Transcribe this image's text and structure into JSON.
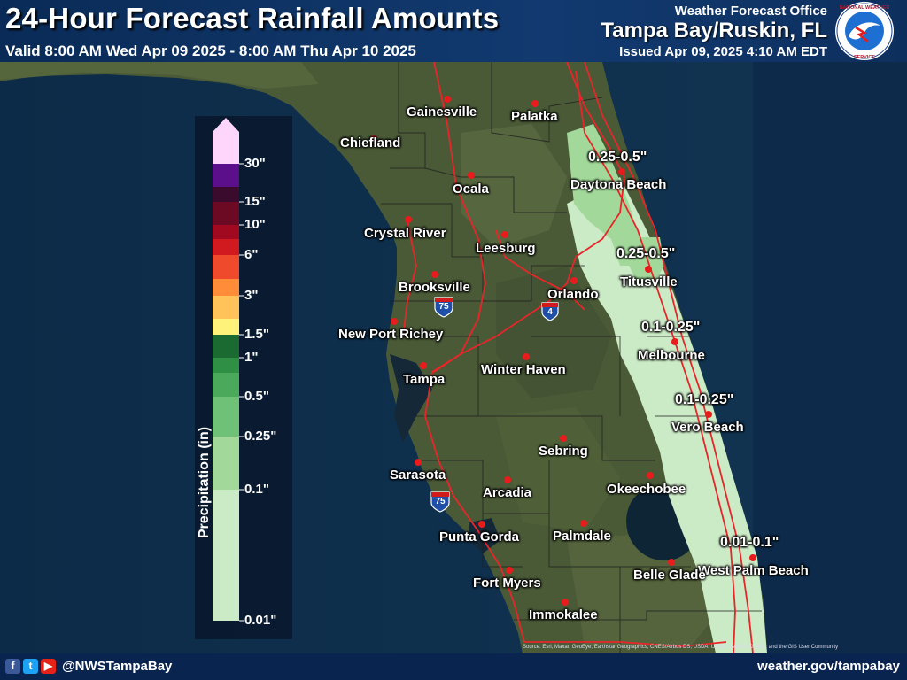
{
  "header": {
    "title": "24-Hour Forecast Rainfall Amounts",
    "valid": "Valid 8:00 AM Wed Apr 09 2025 - 8:00 AM Thu Apr 10 2025",
    "office_label": "Weather Forecast Office",
    "office_name": "Tampa Bay/Ruskin, FL",
    "issued": "Issued Apr 09, 2025 4:10 AM EDT",
    "logo_text": "NATIONAL WEATHER SERVICE"
  },
  "legend": {
    "title": "Precipitation (in)",
    "ticks": [
      "30\"",
      "15\"",
      "10\"",
      "6\"",
      "3\"",
      "1.5\"",
      "1\"",
      "0.5\"",
      "0.25\"",
      "0.1\"",
      "0.01\""
    ],
    "colors": {
      "c30": "#ffd6fb",
      "c20": "#5b0f8a",
      "c15": "#3a0b2d",
      "c12": "#6b0a22",
      "c10": "#a0091f",
      "c8": "#d11a1f",
      "c6": "#f04a2c",
      "c4": "#ff8c38",
      "c3": "#ffc35a",
      "c2": "#fff27a",
      "c1_5": "#1a6a32",
      "c1": "#2f8f44",
      "c0_75": "#4aa95a",
      "c0_5": "#6fc178",
      "c0_25": "#a2d99a",
      "c0_1": "#cbeac6"
    }
  },
  "amounts": [
    "0.25-0.5\"",
    "0.25-0.5\"",
    "0.1-0.25\"",
    "0.1-0.25\"",
    "0.01-0.1\""
  ],
  "cities": {
    "gainesville": "Gainesville",
    "palatka": "Palatka",
    "chiefland": "Chiefland",
    "ocala": "Ocala",
    "daytona": "Daytona Beach",
    "crystal_river": "Crystal River",
    "leesburg": "Leesburg",
    "brooksville": "Brooksville",
    "orlando": "Orlando",
    "titusville": "Titusville",
    "new_port_richey": "New Port Richey",
    "melbourne": "Melbourne",
    "winter_haven": "Winter Haven",
    "tampa": "Tampa",
    "vero_beach": "Vero Beach",
    "sebring": "Sebring",
    "sarasota": "Sarasota",
    "arcadia": "Arcadia",
    "okeechobee": "Okeechobee",
    "punta_gorda": "Punta Gorda",
    "palmdale": "Palmdale",
    "west_palm_beach": "West Palm Beach",
    "belle_glade": "Belle Glade",
    "fort_myers": "Fort Myers",
    "immokalee": "Immokalee"
  },
  "shields": {
    "i75": "75",
    "i4": "4"
  },
  "attribution": "Source: Esri, Maxar, GeoEye, Earthstar Geographics, CNES/Airbus DS, USDA, USGS, AeroGRID, IGN, and the GIS User Community",
  "footer": {
    "handle": "@NWSTampaBay",
    "website": "weather.gov/tampabay"
  }
}
